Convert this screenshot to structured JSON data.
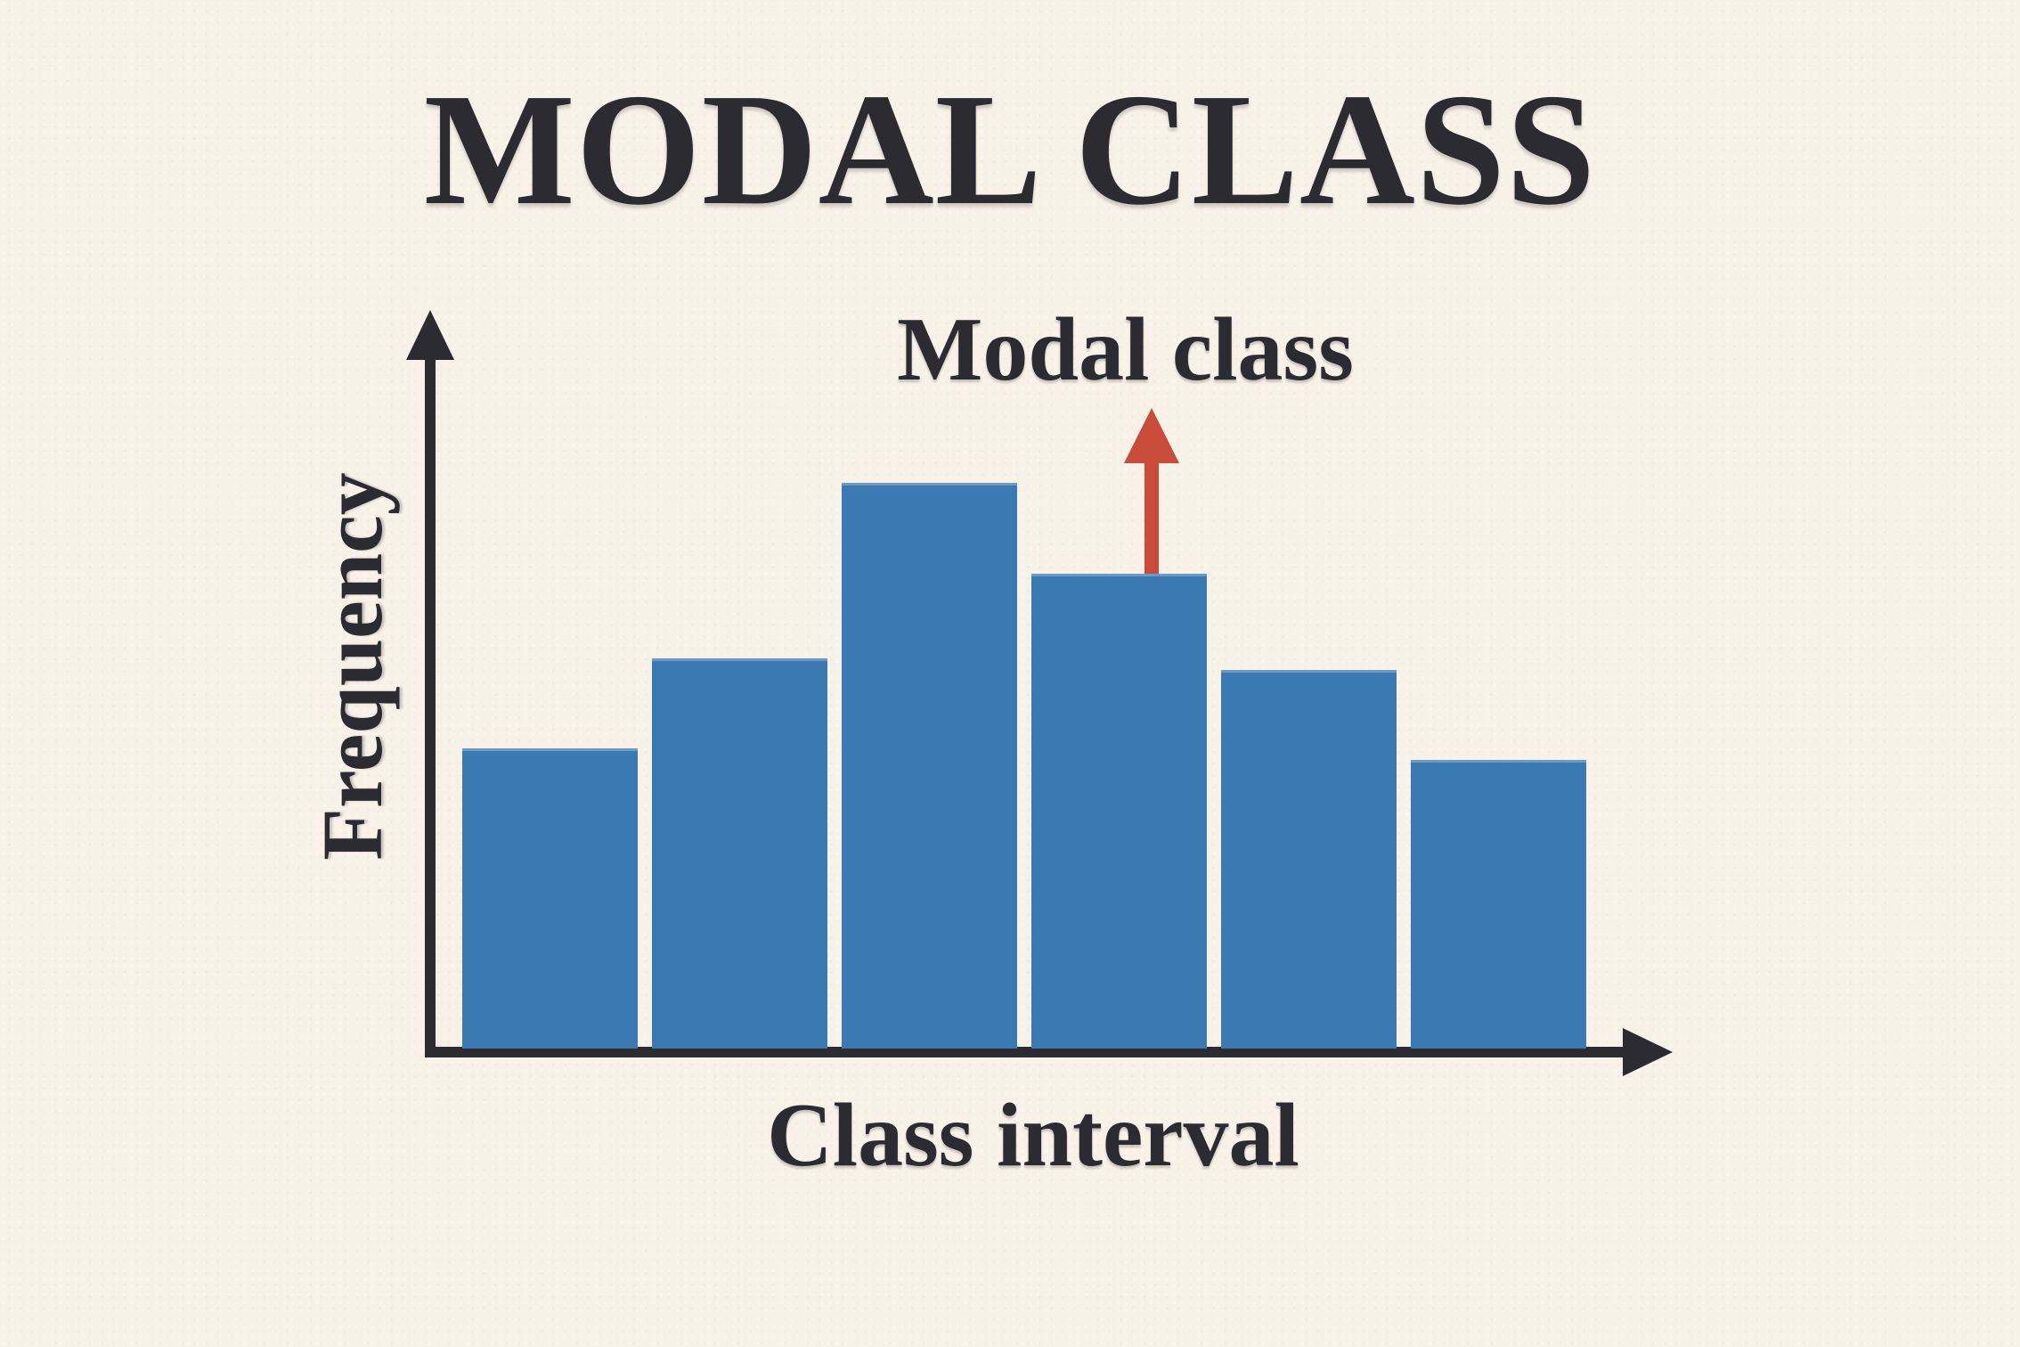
{
  "page": {
    "title": "MODAL CLASS",
    "background_color": "#f8f1e8",
    "ink_color": "#2b2b31"
  },
  "chart_data": {
    "type": "bar",
    "title": "MODAL CLASS",
    "xlabel": "Class interval",
    "ylabel": "Frequency",
    "bar_count": 6,
    "categories": [
      "",
      "",
      "",
      "",
      "",
      ""
    ],
    "values": [
      53,
      69,
      100,
      84,
      67,
      51
    ],
    "value_scale": "relative frequency as % of tallest bar (axes carry no numeric tick labels)",
    "ylim": [
      0,
      108
    ],
    "grid": false,
    "legend": false,
    "bar_color": "#3a79b1",
    "axis_color": "#2b2b31",
    "annotation": {
      "label": "Modal class",
      "arrow_color": "#c94b3a",
      "arrow_direction": "up",
      "arrow_bar_index": 3
    }
  }
}
